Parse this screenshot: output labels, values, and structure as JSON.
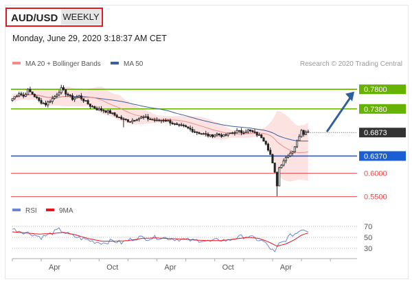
{
  "header": {
    "symbol": "AUD/USD",
    "timeframe": "WEEKLY",
    "timestamp": "Monday, June 29, 2020 3:18:37 AM CET"
  },
  "legend": {
    "ma20_label": "MA 20 + Bollinger Bands",
    "ma50_label": "MA 50",
    "credit": "Research © 2020 Trading Central",
    "rsi_label": "RSI",
    "rsi_ma_label": "9MA"
  },
  "colors": {
    "ma20": "#f28b8b",
    "ma50": "#3a5f9e",
    "bollinger_fill": "#fde2e2",
    "resistance": "#66b200",
    "pivot": "#1a5fd6",
    "support": "#e84a4a",
    "last_price": "#333333",
    "arrow": "#2f5f9e",
    "rsi": "#6b86d6",
    "rsi_ma": "#e8141e"
  },
  "chart_data": [
    {
      "type": "candlestick",
      "ylim": [
        0.545,
        0.82
      ],
      "x_tick_labels": [
        "Apr",
        "Oct",
        "Apr",
        "Oct",
        "Apr"
      ],
      "x_tick_weeks": [
        19,
        45,
        71,
        97,
        123
      ],
      "weeks_count": 155,
      "last_price": 0.6873,
      "levels": [
        {
          "value": 0.78,
          "label": "0.7800",
          "kind": "resistance"
        },
        {
          "value": 0.738,
          "label": "0.7380",
          "kind": "resistance"
        },
        {
          "value": 0.637,
          "label": "0.6370",
          "kind": "pivot"
        },
        {
          "value": 0.6,
          "label": "0.6000",
          "kind": "support"
        },
        {
          "value": 0.55,
          "label": "0.5500",
          "kind": "support"
        }
      ],
      "projection": {
        "from_value": 0.689,
        "to_value": 0.775
      },
      "price_anchors": [
        [
          0,
          0.76
        ],
        [
          3,
          0.772
        ],
        [
          5,
          0.765
        ],
        [
          7,
          0.778
        ],
        [
          9,
          0.77
        ],
        [
          12,
          0.755
        ],
        [
          15,
          0.748
        ],
        [
          18,
          0.76
        ],
        [
          20,
          0.77
        ],
        [
          22,
          0.781
        ],
        [
          24,
          0.772
        ],
        [
          27,
          0.76
        ],
        [
          30,
          0.765
        ],
        [
          32,
          0.757
        ],
        [
          35,
          0.745
        ],
        [
          38,
          0.738
        ],
        [
          41,
          0.735
        ],
        [
          44,
          0.73
        ],
        [
          47,
          0.722
        ],
        [
          50,
          0.715
        ],
        [
          53,
          0.712
        ],
        [
          56,
          0.718
        ],
        [
          59,
          0.72
        ],
        [
          62,
          0.716
        ],
        [
          65,
          0.712
        ],
        [
          68,
          0.715
        ],
        [
          71,
          0.71
        ],
        [
          74,
          0.702
        ],
        [
          77,
          0.7
        ],
        [
          80,
          0.694
        ],
        [
          83,
          0.688
        ],
        [
          86,
          0.684
        ],
        [
          89,
          0.68
        ],
        [
          92,
          0.684
        ],
        [
          95,
          0.68
        ],
        [
          98,
          0.686
        ],
        [
          101,
          0.69
        ],
        [
          103,
          0.688
        ],
        [
          106,
          0.692
        ],
        [
          109,
          0.686
        ],
        [
          112,
          0.678
        ],
        [
          114,
          0.665
        ],
        [
          116,
          0.64
        ],
        [
          118,
          0.6
        ],
        [
          119,
          0.575
        ],
        [
          120,
          0.612
        ],
        [
          122,
          0.628
        ],
        [
          124,
          0.64
        ],
        [
          126,
          0.648
        ],
        [
          128,
          0.668
        ],
        [
          130,
          0.694
        ],
        [
          131,
          0.686
        ],
        [
          133,
          0.689
        ]
      ]
    },
    {
      "type": "line",
      "ylim": [
        15,
        85
      ],
      "y_ticks": [
        70,
        50,
        30
      ],
      "series": [
        {
          "name": "RSI",
          "anchors": [
            [
              0,
              65
            ],
            [
              5,
              60
            ],
            [
              9,
              56
            ],
            [
              13,
              50
            ],
            [
              17,
              56
            ],
            [
              21,
              64
            ],
            [
              25,
              56
            ],
            [
              29,
              50
            ],
            [
              33,
              46
            ],
            [
              37,
              42
            ],
            [
              41,
              40
            ],
            [
              45,
              44
            ],
            [
              49,
              40
            ],
            [
              53,
              46
            ],
            [
              57,
              50
            ],
            [
              61,
              48
            ],
            [
              65,
              50
            ],
            [
              69,
              49
            ],
            [
              73,
              47
            ],
            [
              77,
              46
            ],
            [
              81,
              44
            ],
            [
              85,
              45
            ],
            [
              89,
              42
            ],
            [
              93,
              46
            ],
            [
              97,
              44
            ],
            [
              101,
              50
            ],
            [
              105,
              52
            ],
            [
              109,
              48
            ],
            [
              113,
              42
            ],
            [
              116,
              30
            ],
            [
              118,
              22
            ],
            [
              120,
              38
            ],
            [
              122,
              42
            ],
            [
              124,
              50
            ],
            [
              126,
              55
            ],
            [
              128,
              58
            ],
            [
              130,
              66
            ],
            [
              133,
              62
            ]
          ]
        },
        {
          "name": "9MA",
          "anchors": [
            [
              0,
              60
            ],
            [
              6,
              58
            ],
            [
              12,
              56
            ],
            [
              18,
              57
            ],
            [
              23,
              59
            ],
            [
              28,
              55
            ],
            [
              34,
              48
            ],
            [
              40,
              43
            ],
            [
              46,
              43
            ],
            [
              52,
              44
            ],
            [
              58,
              48
            ],
            [
              64,
              49
            ],
            [
              70,
              48
            ],
            [
              76,
              47
            ],
            [
              82,
              45
            ],
            [
              88,
              44
            ],
            [
              94,
              44
            ],
            [
              100,
              47
            ],
            [
              106,
              50
            ],
            [
              111,
              48
            ],
            [
              115,
              42
            ],
            [
              119,
              34
            ],
            [
              123,
              38
            ],
            [
              127,
              46
            ],
            [
              130,
              54
            ],
            [
              133,
              58
            ]
          ]
        }
      ]
    }
  ]
}
